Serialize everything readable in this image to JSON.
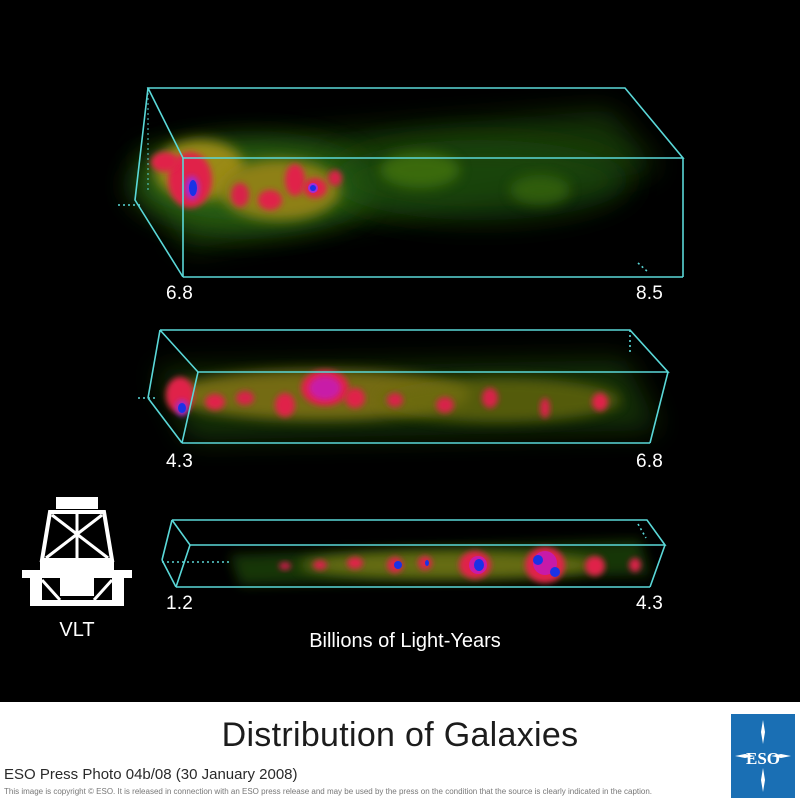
{
  "panels": [
    {
      "start": "6.8",
      "end": "8.5"
    },
    {
      "start": "4.3",
      "end": "6.8"
    },
    {
      "start": "1.2",
      "end": "4.3"
    }
  ],
  "axis_caption": "Billions of Light-Years",
  "telescope_label": "VLT",
  "footer": {
    "title": "Distribution of Galaxies",
    "credit": "ESO Press Photo 04b/08 (30 January 2008)",
    "copyright": "This image is copyright © ESO. It is released in connection with an ESO press release and may be used by the press on the condition that the source is clearly indicated in the caption.",
    "logo_text": "ESO"
  },
  "colors": {
    "box_edge": "#5ad8d8",
    "density_low": "#2f6a12",
    "density_mid": "#c8a316",
    "density_high": "#e0204a",
    "density_peak": "#1a32e6",
    "logo_blue": "#1a6fb4"
  }
}
